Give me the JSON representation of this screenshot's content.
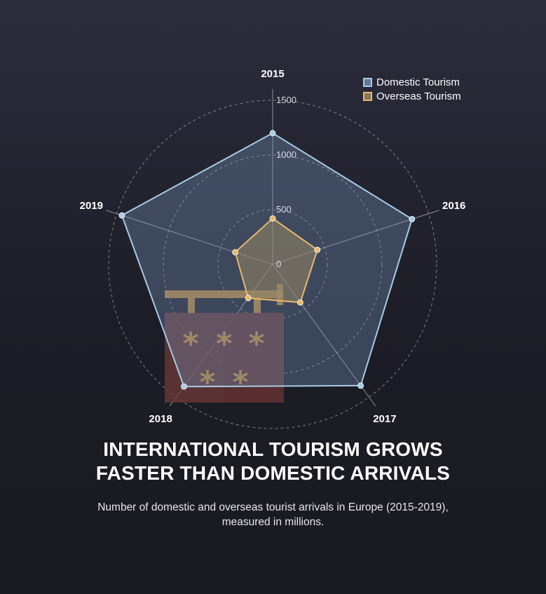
{
  "title_line1": "INTERNATIONAL TOURISM GROWS",
  "title_line2": "FASTER THAN DOMESTIC ARRIVALS",
  "subtitle_line1": "Number of domestic and overseas tourist arrivals in Europe (2015-2019),",
  "subtitle_line2": "measured in millions.",
  "colors": {
    "domestic": "#a6cce6",
    "overseas": "#e8b86c",
    "grid": "#9a9aa8",
    "label": "#ffffff"
  },
  "chart_data": {
    "type": "radar",
    "title": "INTERNATIONAL TOURISM GROWS FASTER THAN DOMESTIC ARRIVALS",
    "subtitle": "Number of domestic and overseas tourist arrivals in Europe (2015-2019), measured in millions.",
    "categories": [
      "2015",
      "2016",
      "2017",
      "2018",
      "2019"
    ],
    "rmax": 1500,
    "ticks": [
      0,
      500,
      1000,
      1500
    ],
    "grid": true,
    "legend_position": "top-right",
    "series": [
      {
        "name": "Domestic Tourism",
        "values": [
          1200,
          1340,
          1370,
          1380,
          1450
        ]
      },
      {
        "name": "Overseas Tourism",
        "values": [
          420,
          430,
          430,
          380,
          360
        ]
      }
    ]
  }
}
